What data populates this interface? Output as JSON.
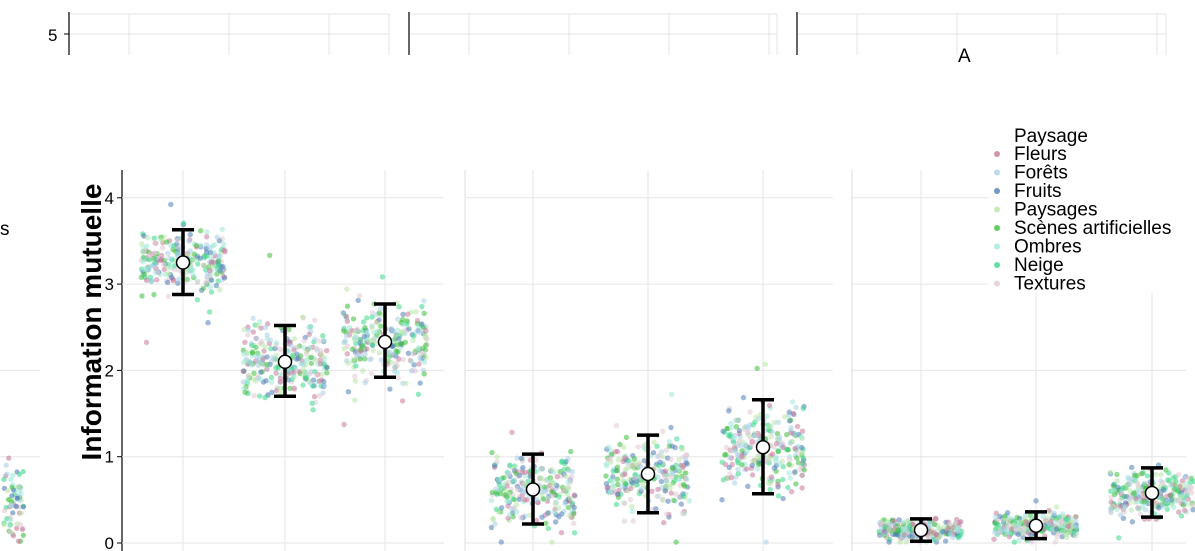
{
  "chart_data": {
    "type": "scatter",
    "ylabel": "Information mutuelle",
    "top_strip_tick": "5",
    "left_edge_fragment": "s",
    "partial_top_text": "A",
    "partial_legend_text": "Paysage",
    "ylim": [
      0,
      4.2
    ],
    "yticks": [
      0,
      1,
      2,
      3,
      4
    ],
    "grid": true,
    "legend_position": "top-right",
    "legend": [
      {
        "label": "Fleurs",
        "color": "#c77a9a"
      },
      {
        "label": "Forêts",
        "color": "#a8cfe8"
      },
      {
        "label": "Fruits",
        "color": "#4f7fb8"
      },
      {
        "label": "Paysages",
        "color": "#b8e6a8"
      },
      {
        "label": "Scènes artificielles",
        "color": "#3cbf3c"
      },
      {
        "label": "Ombres",
        "color": "#9ee8d8"
      },
      {
        "label": "Neige",
        "color": "#3ad88a"
      },
      {
        "label": "Textures",
        "color": "#e0c8d4"
      }
    ],
    "panels": [
      {
        "groups": [
          {
            "mean": 3.25,
            "lower": 2.88,
            "upper": 3.63,
            "spread": 0.45
          },
          {
            "mean": 2.1,
            "lower": 1.7,
            "upper": 2.52,
            "spread": 0.55
          },
          {
            "mean": 2.33,
            "lower": 1.92,
            "upper": 2.77,
            "spread": 0.55
          }
        ]
      },
      {
        "groups": [
          {
            "mean": 0.62,
            "lower": 0.22,
            "upper": 1.03,
            "spread": 0.5
          },
          {
            "mean": 0.8,
            "lower": 0.35,
            "upper": 1.25,
            "spread": 0.55
          },
          {
            "mean": 1.11,
            "lower": 0.57,
            "upper": 1.66,
            "spread": 0.6
          }
        ]
      },
      {
        "groups": [
          {
            "mean": 0.15,
            "lower": 0.02,
            "upper": 0.28,
            "spread": 0.15
          },
          {
            "mean": 0.2,
            "lower": 0.05,
            "upper": 0.36,
            "spread": 0.18
          },
          {
            "mean": 0.58,
            "lower": 0.3,
            "upper": 0.87,
            "spread": 0.35
          }
        ]
      }
    ]
  }
}
